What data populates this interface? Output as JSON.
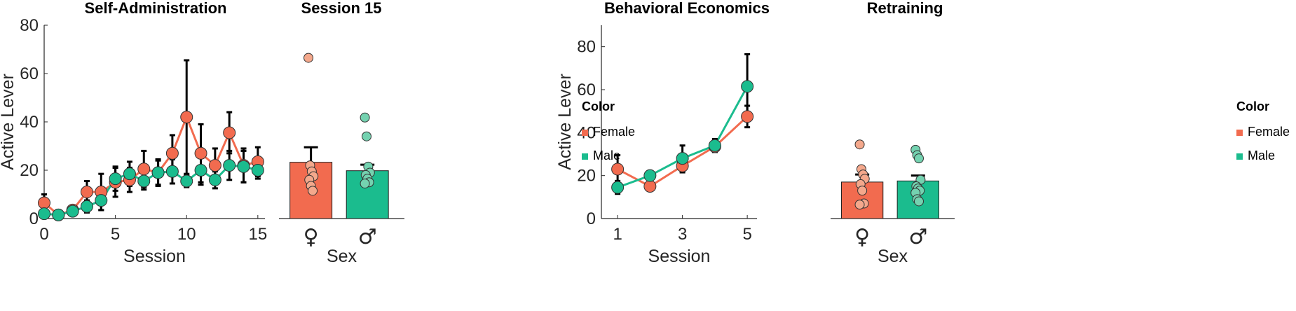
{
  "colors": {
    "female": "#F26B4F",
    "male": "#1BBC8E",
    "female_light": "#F4A88C",
    "male_light": "#74D2B0"
  },
  "chart_data": [
    {
      "type": "line",
      "title": "Self-Administration",
      "xlabel": "Session",
      "ylabel": "Active Lever",
      "xlim": [
        0,
        15.5
      ],
      "ylim": [
        0,
        80
      ],
      "xticks": [
        0,
        5,
        10,
        15
      ],
      "yticks": [
        0,
        20,
        40,
        60,
        80
      ],
      "x": [
        0,
        1,
        2,
        3,
        4,
        5,
        6,
        7,
        8,
        9,
        10,
        11,
        12,
        13,
        14,
        15
      ],
      "series": [
        {
          "name": "Female",
          "values": [
            6.5,
            1.5,
            3.5,
            11,
            11,
            15,
            16,
            20.5,
            19,
            27,
            42,
            27,
            22,
            35.5,
            22,
            23.5
          ],
          "err": [
            3.5,
            0.8,
            1.2,
            4.5,
            7.5,
            6,
            5,
            7.5,
            5,
            7.5,
            23.5,
            12,
            7,
            8.5,
            7,
            6
          ]
        },
        {
          "name": "Male",
          "values": [
            2,
            1.5,
            3,
            5,
            7.5,
            16.5,
            18.5,
            15.5,
            19,
            19.5,
            15.5,
            20,
            16,
            22,
            21.5,
            20
          ],
          "err": [
            1.5,
            0.8,
            1.2,
            2.5,
            4,
            5,
            5,
            3.5,
            5.5,
            5,
            2.5,
            6,
            3.5,
            6,
            6.5,
            3.5
          ]
        }
      ]
    },
    {
      "type": "bar",
      "title": "Session 15",
      "xlabel": "Sex",
      "categories": [
        "♀",
        "♂"
      ],
      "ylim": [
        0,
        80
      ],
      "values": [
        23.3,
        19.8
      ],
      "err": [
        6.2,
        2.5
      ],
      "points": [
        [
          66.5,
          22,
          19.5,
          17.5,
          16,
          13.5,
          11.5
        ],
        [
          41.8,
          34,
          21.5,
          19,
          18,
          16.5,
          15,
          14.5
        ]
      ]
    },
    {
      "type": "line",
      "title": "Behavioral Economics",
      "xlabel": "Session",
      "ylabel": "Active Lever",
      "xlim": [
        0.5,
        5.3
      ],
      "ylim": [
        0,
        90
      ],
      "xticks": [
        1,
        3,
        5
      ],
      "yticks": [
        0,
        20,
        40,
        60,
        80
      ],
      "x": [
        1,
        2,
        3,
        4,
        5
      ],
      "series": [
        {
          "name": "Female",
          "values": [
            23,
            15,
            24.5,
            33.5,
            47.5
          ],
          "err": [
            6.5,
            2,
            3,
            2.5,
            5
          ]
        },
        {
          "name": "Male",
          "values": [
            14.5,
            20,
            28,
            34,
            61.5
          ],
          "err": [
            3,
            2,
            6,
            3,
            15
          ]
        }
      ]
    },
    {
      "type": "bar",
      "title": "Retraining",
      "xlabel": "Sex",
      "categories": [
        "♀",
        "♂"
      ],
      "ylim": [
        0,
        90
      ],
      "values": [
        17,
        17.5
      ],
      "err": [
        3.5,
        2.5
      ],
      "points": [
        [
          34.5,
          23,
          20.5,
          18.5,
          16,
          13,
          7,
          6.5
        ],
        [
          32,
          29.5,
          28,
          18,
          15,
          14,
          13,
          12,
          9,
          8
        ]
      ]
    }
  ],
  "legends": [
    {
      "title": "Color",
      "items": [
        "Female",
        "Male"
      ]
    },
    {
      "title": "Color",
      "items": [
        "Female",
        "Male"
      ]
    }
  ]
}
